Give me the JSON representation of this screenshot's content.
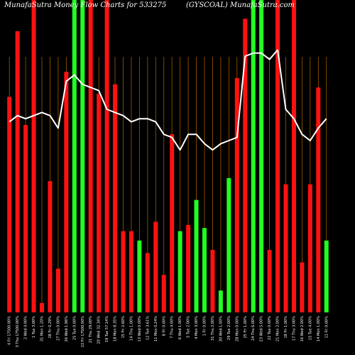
{
  "header": {
    "left": "MunafaSutra  Money Flow  Charts for 533275",
    "right": "(GYSCOAL) MunafaSutra.com"
  },
  "colors": {
    "background": "#000000",
    "up": "#22ff22",
    "down": "#ff1111",
    "grid": "#a05a00",
    "line": "#ffffff",
    "text": "#ffffff"
  },
  "chart_data": {
    "type": "bar",
    "title": "MunafaSutra  Money Flow  Charts for 533275",
    "subtitle": "(GYSCOAL) MunafaSutra.com",
    "ylim": [
      0,
      100
    ],
    "categories": [
      "4 Fri 17500.00%",
      "3 Thu 17500.00%",
      "2 Wed 4.00%",
      "1 Tue 3.00%",
      "31 Mon 1.20%",
      "28 Fri 0.29%",
      "27 Thu 0.00%",
      "26 Wed 1.96%",
      "25 Tue 0.00%",
      "22 Fri 17500.00%",
      "21 Thu 29.00%",
      "20 Wed 32.34%",
      "19 Tue 57.14%",
      "18 Mon 8.35%",
      "15 Fri 2.60%",
      "14 Thu 1.00%",
      "13 Wed 0.00%",
      "12 Tue 3.61%",
      "11 Mon 0.24%",
      "8 Fri 0.00%",
      "7 Thu 4.00%",
      "6 Wed 1.00%",
      "5 Tue 2.00%",
      "4 Mon 3.00%",
      "1 Fri 0.00%",
      "31 Thu 2.00%",
      "30 Wed 1.00%",
      "29 Tue 2.00%",
      "28 Mon 0.00%",
      "25 Fri 1.00%",
      "24 Thu 6.00%",
      "23 Wed 5.00%",
      "22 Tue 0.00%",
      "21 Mon 2.00%",
      "18 Fri 1.00%",
      "17 Thu 3.00%",
      "16 Wed 2.00%",
      "15 Tue 4.00%",
      "14 Mon 1.00%",
      "11 Fri 0.00%"
    ],
    "series": [
      {
        "values": [
          69,
          90,
          60,
          100,
          3,
          42,
          14,
          77,
          100,
          100,
          100,
          70,
          100,
          73,
          26,
          26,
          23,
          19,
          29,
          12,
          57,
          26,
          28,
          36,
          27,
          20,
          7,
          43,
          75,
          94,
          100,
          100,
          20,
          100,
          41,
          100,
          16,
          41,
          72,
          23
        ],
        "directions": [
          "down",
          "down",
          "down",
          "down",
          "down",
          "down",
          "down",
          "down",
          "up",
          "up",
          "down",
          "down",
          "down",
          "down",
          "down",
          "down",
          "up",
          "down",
          "down",
          "down",
          "down",
          "up",
          "down",
          "up",
          "up",
          "down",
          "up",
          "up",
          "down",
          "down",
          "up",
          "up",
          "down",
          "down",
          "down",
          "down",
          "down",
          "down",
          "down",
          "up"
        ]
      },
      {
        "values": [
          61,
          63,
          62,
          63,
          64,
          63,
          59,
          74,
          76,
          73,
          72,
          71,
          65,
          64,
          63,
          61,
          62,
          62,
          61,
          57,
          56,
          52,
          57,
          57,
          54,
          52,
          54,
          55,
          56,
          82,
          83,
          83,
          81,
          84,
          65,
          62,
          57,
          55,
          59,
          62
        ]
      }
    ]
  }
}
